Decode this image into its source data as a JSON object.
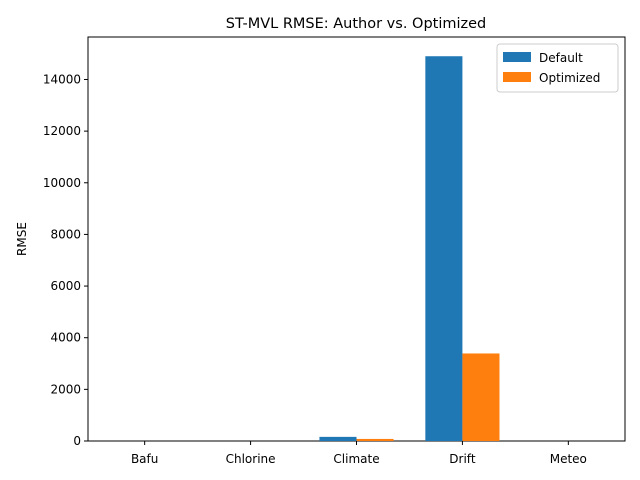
{
  "chart_data": {
    "type": "bar",
    "title": "ST-MVL RMSE: Author vs. Optimized",
    "xlabel": "",
    "ylabel": "RMSE",
    "categories": [
      "Bafu",
      "Chlorine",
      "Climate",
      "Drift",
      "Meteo"
    ],
    "series": [
      {
        "name": "Default",
        "color": "#1f77b4",
        "values": [
          0,
          0,
          160,
          14900,
          0
        ]
      },
      {
        "name": "Optimized",
        "color": "#ff7f0e",
        "values": [
          0,
          0,
          80,
          3390,
          0
        ]
      }
    ],
    "ylim": [
      0,
      15645
    ],
    "yticks": [
      0,
      2000,
      4000,
      6000,
      8000,
      10000,
      12000,
      14000
    ],
    "grid": false,
    "legend": "top-right"
  }
}
